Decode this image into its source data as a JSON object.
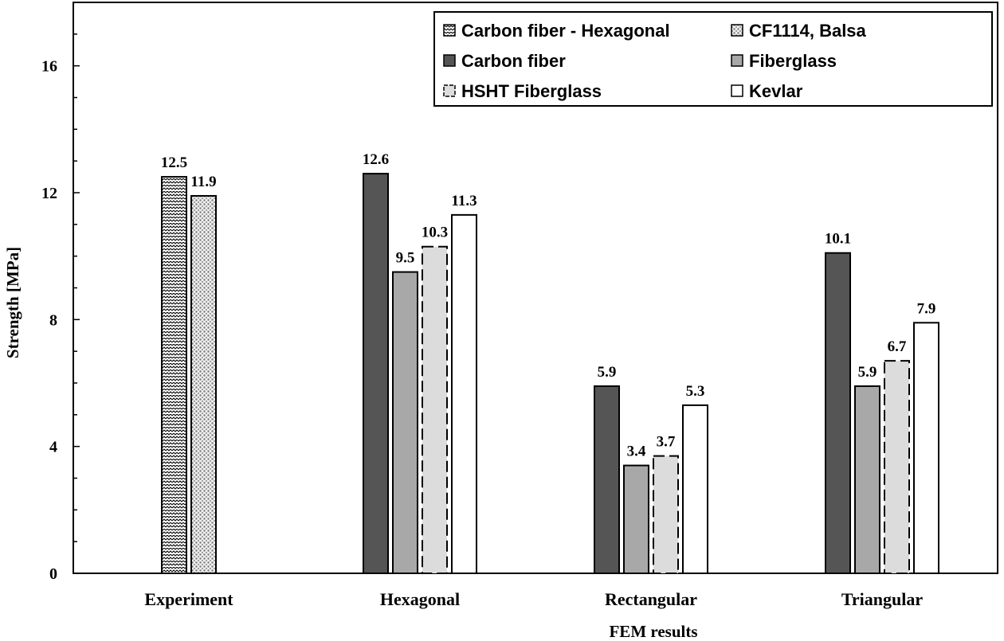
{
  "chart_data": {
    "type": "bar",
    "title": "",
    "xlabel": "FEM results",
    "ylabel": "Strength [MPa]",
    "ylim": [
      0,
      18
    ],
    "yticks": [
      0,
      4,
      8,
      12,
      16
    ],
    "grid": false,
    "legend_position": "top-right",
    "categories": [
      "Experiment",
      "Hexagonal",
      "Rectangular",
      "Triangular"
    ],
    "series": [
      {
        "name": "Carbon fiber - Hexagonal",
        "pattern": "zigzag",
        "values": [
          12.5,
          null,
          null,
          null
        ]
      },
      {
        "name": "CF1114, Balsa",
        "pattern": "dots",
        "values": [
          11.9,
          null,
          null,
          null
        ]
      },
      {
        "name": "Carbon fiber",
        "color": "#555555",
        "values": [
          null,
          12.6,
          5.9,
          10.1
        ]
      },
      {
        "name": "Fiberglass",
        "color": "#a8a8a8",
        "values": [
          null,
          9.5,
          3.4,
          5.9
        ]
      },
      {
        "name": "HSHT Fiberglass",
        "color": "#dcdcdc",
        "dashed": true,
        "values": [
          null,
          10.3,
          3.7,
          6.7
        ]
      },
      {
        "name": "Kevlar",
        "color": "#ffffff",
        "values": [
          null,
          11.3,
          5.3,
          7.9
        ]
      }
    ],
    "data_labels": [
      [
        "12.5",
        null,
        null,
        null
      ],
      [
        "11.9",
        null,
        null,
        null
      ],
      [
        null,
        "12.6",
        "5.9",
        "10.1"
      ],
      [
        null,
        "9.5",
        "3.4",
        "5.9"
      ],
      [
        null,
        "10.3",
        "3.7",
        "6.7"
      ],
      [
        null,
        "11.3",
        "5.3",
        "7.9"
      ]
    ]
  }
}
